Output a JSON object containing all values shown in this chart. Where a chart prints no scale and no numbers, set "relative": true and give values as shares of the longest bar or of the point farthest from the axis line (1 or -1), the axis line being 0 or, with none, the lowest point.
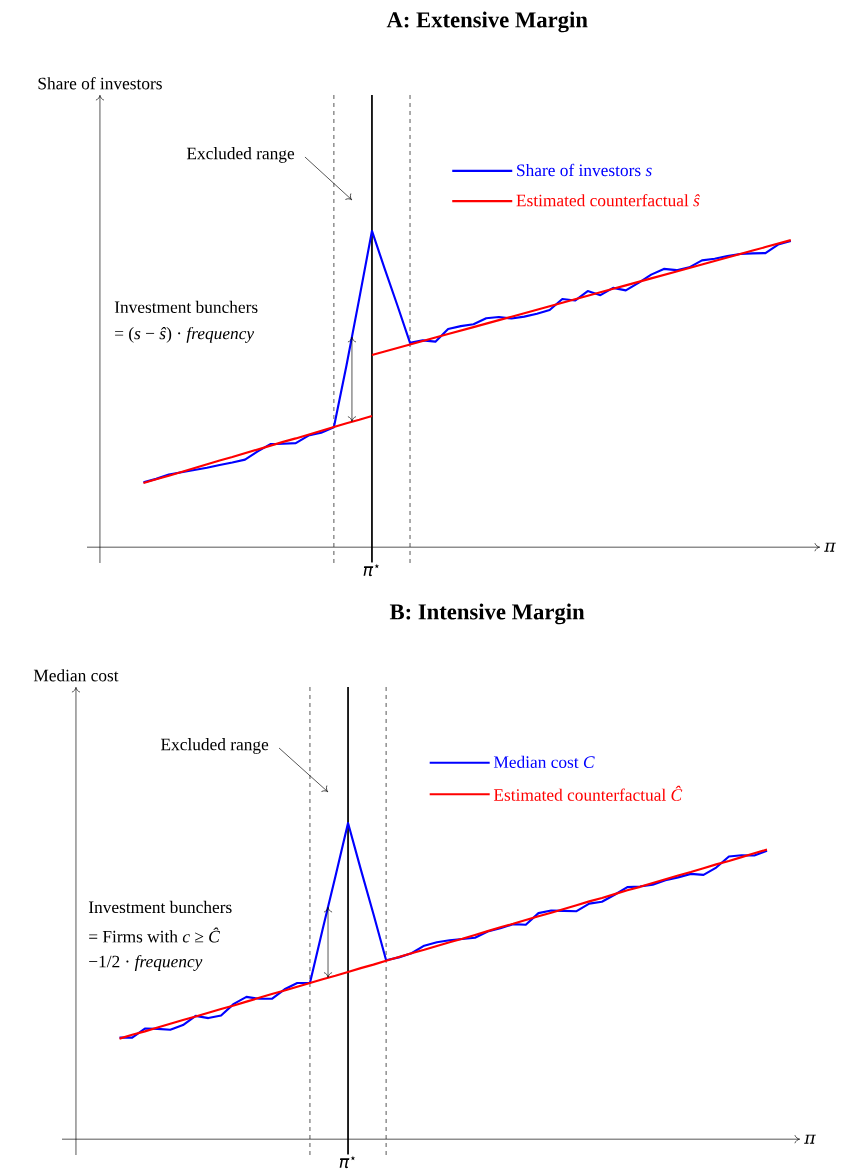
{
  "chart_data": [
    {
      "type": "line",
      "title": "A: Extensive Margin",
      "xlabel": "π",
      "ylabel": "Share of investors",
      "relative": true,
      "legend": "top right",
      "categories": [
        null,
        null,
        null,
        null,
        null,
        null,
        null,
        null,
        null,
        null,
        null,
        null,
        null,
        null,
        null,
        null,
        null,
        null,
        null,
        null,
        null,
        null,
        null,
        null,
        null,
        null,
        null,
        null,
        null,
        null,
        null,
        null,
        null,
        null,
        null,
        null,
        null,
        null,
        null,
        null,
        null,
        null,
        null,
        null,
        null,
        null,
        null,
        null,
        null,
        null,
        null,
        null
      ],
      "series": [
        {
          "name": "Share of investors *s*",
          "color": "#0000ff",
          "values": [
            0.205,
            0.216,
            0.23,
            0.237,
            0.244,
            0.251,
            0.26,
            0.268,
            0.277,
            0.303,
            0.326,
            0.327,
            0.329,
            0.353,
            0.362,
            0.379,
            0.576,
            0.786,
            1.0,
            0.881,
            0.765,
            0.646,
            0.654,
            0.65,
            0.69,
            0.699,
            0.705,
            0.724,
            0.728,
            0.723,
            0.729,
            0.738,
            0.75,
            0.785,
            0.78,
            0.81,
            0.797,
            0.82,
            0.812,
            0.836,
            0.862,
            0.88,
            0.876,
            0.885,
            0.907,
            0.912,
            0.921,
            0.927,
            0.929,
            0.93,
            0.957,
            0.968
          ]
        },
        {
          "name": "Estimated counterfactual *ŝ*",
          "color": "#ff0000",
          "values": [
            0.203,
            0.215,
            0.226,
            0.238,
            0.25,
            0.262,
            0.274,
            0.285,
            0.297,
            0.309,
            0.321,
            0.333,
            0.344,
            0.356,
            0.368,
            0.38,
            0.392,
            0.403,
            0.415,
            null,
            null,
            null,
            null,
            null,
            null,
            null,
            null,
            null,
            null,
            null,
            null,
            null,
            null,
            null,
            null,
            null,
            null,
            null,
            null,
            null,
            null,
            null,
            null,
            null,
            null,
            null,
            null,
            null,
            null,
            null,
            null,
            null
          ]
        },
        {
          "color": "#ff0000",
          "values": [
            null,
            null,
            null,
            null,
            null,
            null,
            null,
            null,
            null,
            null,
            null,
            null,
            null,
            null,
            null,
            null,
            null,
            null,
            0.608,
            0.619,
            0.63,
            0.641,
            0.652,
            0.663,
            0.674,
            0.685,
            0.696,
            0.707,
            0.718,
            0.729,
            0.74,
            0.751,
            0.762,
            0.773,
            0.784,
            0.795,
            0.806,
            0.817,
            0.828,
            0.839,
            0.85,
            0.861,
            0.872,
            0.883,
            0.894,
            0.905,
            0.916,
            0.927,
            0.938,
            0.949,
            0.96,
            0.971
          ]
        }
      ],
      "annotations": [
        "π$^{⋆}$",
        "Excluded range",
        "Investment bunchers",
        "= (*s* − *ŝ*) · *frequency*"
      ]
    },
    {
      "type": "line",
      "title": "B: Intensive Margin",
      "xlabel": "π",
      "ylabel": "Median cost",
      "relative": true,
      "legend": "top right",
      "categories": [
        null,
        null,
        null,
        null,
        null,
        null,
        null,
        null,
        null,
        null,
        null,
        null,
        null,
        null,
        null,
        null,
        null,
        null,
        null,
        null,
        null,
        null,
        null,
        null,
        null,
        null,
        null,
        null,
        null,
        null,
        null,
        null,
        null,
        null,
        null,
        null,
        null,
        null,
        null,
        null,
        null,
        null,
        null,
        null,
        null,
        null,
        null,
        null,
        null,
        null,
        null,
        null
      ],
      "series": [
        {
          "name": "Median cost *C*",
          "color": "#0000ff",
          "values": [
            0.321,
            0.321,
            0.35,
            0.349,
            0.346,
            0.361,
            0.39,
            0.383,
            0.391,
            0.428,
            0.45,
            0.444,
            0.444,
            0.474,
            0.494,
            0.494,
            0.664,
            0.83,
            1.0,
            0.854,
            0.712,
            0.566,
            0.575,
            0.588,
            0.612,
            0.623,
            0.629,
            0.633,
            0.637,
            0.657,
            0.667,
            0.68,
            0.678,
            0.715,
            0.723,
            0.722,
            0.721,
            0.745,
            0.751,
            0.773,
            0.797,
            0.799,
            0.805,
            0.819,
            0.828,
            0.839,
            0.836,
            0.859,
            0.894,
            0.898,
            0.897,
            0.912
          ]
        },
        {
          "name": "Estimated counterfactual *Ĉ*",
          "color": "#ff0000",
          "values": [
            0.318,
            0.33,
            0.341,
            0.353,
            0.365,
            0.377,
            0.388,
            0.4,
            0.412,
            0.423,
            0.435,
            0.447,
            0.459,
            0.47,
            0.482,
            0.494,
            0.506,
            0.517,
            0.529,
            0.541,
            0.552,
            0.564,
            0.576,
            0.588,
            0.599,
            0.611,
            0.623,
            0.634,
            0.646,
            0.658,
            0.67,
            0.681,
            0.693,
            0.705,
            0.716,
            0.728,
            0.74,
            0.752,
            0.763,
            0.775,
            0.787,
            0.798,
            0.81,
            0.822,
            0.834,
            0.845,
            0.857,
            0.869,
            0.88,
            0.892,
            0.904,
            0.916
          ]
        }
      ],
      "annotations": [
        "π$^{⋆}$",
        "Excluded range",
        "Investment bunchers",
        "= Firms with *c* ≥ *Ĉ*",
        "−1/2 · *frequency*"
      ]
    }
  ]
}
